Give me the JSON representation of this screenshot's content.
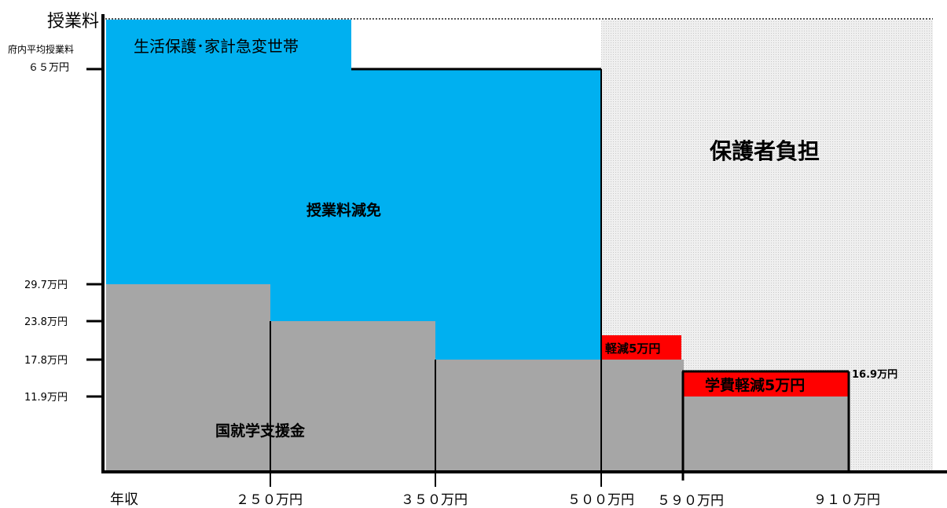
{
  "title": "授業料",
  "average_tuition_label": "府内平均授業料",
  "average_tuition_value": "６５万円",
  "x_axis_label": "年収",
  "x_ticks": [
    "２５０万円",
    "３５０万円",
    "５００万円",
    "５９０万円",
    "９１０万円"
  ],
  "y_ticks": [
    "29.7万円",
    "23.8万円",
    "17.8万円",
    "11.9万円"
  ],
  "regions": {
    "welfare": "生活保護･家計急変世帯",
    "tuition_exemption": "授業料減免",
    "national_support": "国就学支援金",
    "guardian_burden": "保護者負担",
    "reduction_500_590": "軽減5万円",
    "reduction_590_910": "学費軽減5万円",
    "right_value": "16.9万円"
  },
  "colors": {
    "exemption": "#00b0f0",
    "support": "#a6a6a6",
    "reduction": "#ff0000",
    "guardian": "#e3e3e3",
    "axis": "#000000"
  }
}
